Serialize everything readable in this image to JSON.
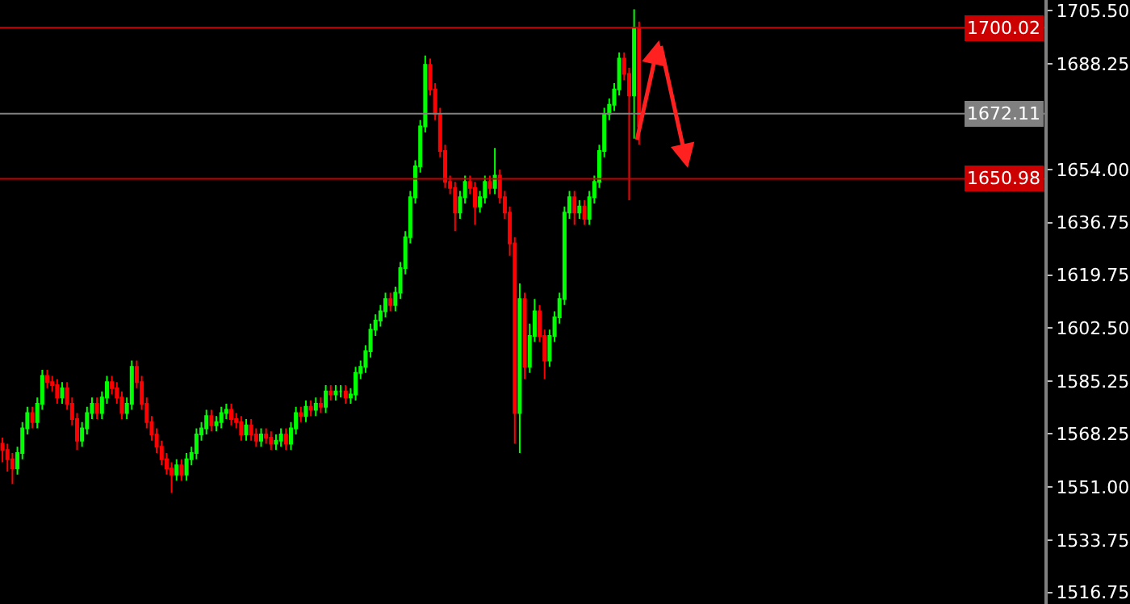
{
  "chart_data": {
    "type": "candlestick",
    "categories": [
      null,
      null,
      null,
      null,
      null,
      null,
      null,
      null,
      null,
      null,
      null,
      null,
      null,
      null,
      null,
      null,
      null,
      null,
      null,
      null,
      null,
      null,
      null,
      null,
      null,
      null,
      null,
      null,
      null,
      null,
      null,
      null,
      null,
      null,
      null,
      null,
      null,
      null,
      null,
      null,
      null,
      null,
      null,
      null,
      null,
      null,
      null,
      null,
      null,
      null,
      null,
      null,
      null,
      null,
      null,
      null,
      null,
      null,
      null,
      null,
      null,
      null,
      null,
      null,
      null,
      null,
      null,
      null,
      null,
      null,
      null,
      null,
      null,
      null,
      null,
      null,
      null,
      null,
      null,
      null,
      null,
      null,
      null,
      null,
      null,
      null,
      null,
      null,
      null,
      null,
      null,
      null,
      null,
      null,
      null,
      null,
      null,
      null,
      null,
      null,
      null,
      null,
      null,
      null,
      null,
      null,
      null,
      null,
      null,
      null,
      null,
      null,
      null,
      null,
      null,
      null,
      null,
      null,
      null,
      null,
      null,
      null,
      null,
      null,
      null,
      null,
      null,
      null,
      null,
      null,
      null,
      null,
      null,
      null,
      null,
      null,
      null,
      null,
      null,
      null,
      null,
      null,
      null,
      null,
      null,
      null,
      null,
      null,
      null,
      null,
      null,
      null,
      null,
      null,
      null,
      null,
      null,
      null,
      null,
      null,
      null,
      null,
      null,
      null,
      null,
      null,
      null,
      null,
      null,
      null,
      null,
      null,
      null,
      null,
      null,
      null,
      null,
      null,
      null,
      null,
      null,
      null,
      null,
      null,
      null,
      null,
      null,
      null,
      null,
      null,
      null,
      null,
      null,
      null,
      null,
      null,
      null,
      null,
      null,
      null,
      null,
      null,
      null,
      null,
      null,
      null,
      null,
      null,
      null,
      null
    ],
    "ohlc": [
      [
        1565,
        1567,
        1559,
        1563
      ],
      [
        1563,
        1565,
        1556,
        1560
      ],
      [
        1560,
        1562,
        1552,
        1557
      ],
      [
        1557,
        1564,
        1555,
        1562
      ],
      [
        1562,
        1572,
        1560,
        1570
      ],
      [
        1570,
        1577,
        1568,
        1575
      ],
      [
        1575,
        1577,
        1570,
        1572
      ],
      [
        1572,
        1580,
        1570,
        1578
      ],
      [
        1578,
        1589,
        1576,
        1587
      ],
      [
        1587,
        1589,
        1583,
        1585
      ],
      [
        1585,
        1587,
        1582,
        1584
      ],
      [
        1584,
        1586,
        1578,
        1580
      ],
      [
        1580,
        1585,
        1578,
        1583
      ],
      [
        1583,
        1585,
        1576,
        1578
      ],
      [
        1578,
        1580,
        1571,
        1573
      ],
      [
        1573,
        1575,
        1563,
        1566
      ],
      [
        1566,
        1572,
        1564,
        1570
      ],
      [
        1570,
        1577,
        1568,
        1575
      ],
      [
        1575,
        1580,
        1573,
        1578
      ],
      [
        1578,
        1580,
        1573,
        1575
      ],
      [
        1575,
        1582,
        1573,
        1580
      ],
      [
        1580,
        1587,
        1578,
        1585
      ],
      [
        1585,
        1587,
        1581,
        1583
      ],
      [
        1583,
        1585,
        1578,
        1580
      ],
      [
        1580,
        1582,
        1573,
        1575
      ],
      [
        1575,
        1580,
        1573,
        1578
      ],
      [
        1578,
        1592,
        1576,
        1590
      ],
      [
        1590,
        1592,
        1583,
        1585
      ],
      [
        1585,
        1587,
        1576,
        1578
      ],
      [
        1578,
        1580,
        1570,
        1572
      ],
      [
        1572,
        1574,
        1566,
        1568
      ],
      [
        1568,
        1570,
        1562,
        1564
      ],
      [
        1564,
        1566,
        1558,
        1560
      ],
      [
        1560,
        1562,
        1555,
        1557
      ],
      [
        1557,
        1559,
        1549,
        1555
      ],
      [
        1555,
        1560,
        1553,
        1558
      ],
      [
        1558,
        1560,
        1553,
        1555
      ],
      [
        1555,
        1562,
        1553,
        1560
      ],
      [
        1560,
        1564,
        1558,
        1562
      ],
      [
        1562,
        1570,
        1560,
        1568
      ],
      [
        1568,
        1572,
        1566,
        1570
      ],
      [
        1570,
        1576,
        1568,
        1574
      ],
      [
        1574,
        1576,
        1569,
        1571
      ],
      [
        1571,
        1574,
        1569,
        1572
      ],
      [
        1572,
        1577,
        1570,
        1575
      ],
      [
        1575,
        1578,
        1573,
        1576
      ],
      [
        1576,
        1578,
        1571,
        1573
      ],
      [
        1573,
        1575,
        1570,
        1572
      ],
      [
        1572,
        1574,
        1566,
        1568
      ],
      [
        1568,
        1573,
        1566,
        1571
      ],
      [
        1571,
        1573,
        1566,
        1568
      ],
      [
        1568,
        1570,
        1564,
        1566
      ],
      [
        1566,
        1570,
        1564,
        1568
      ],
      [
        1568,
        1570,
        1565,
        1567
      ],
      [
        1567,
        1569,
        1563,
        1565
      ],
      [
        1565,
        1568,
        1563,
        1566
      ],
      [
        1566,
        1570,
        1564,
        1568
      ],
      [
        1568,
        1570,
        1563,
        1565
      ],
      [
        1565,
        1572,
        1563,
        1570
      ],
      [
        1570,
        1577,
        1568,
        1575
      ],
      [
        1575,
        1577,
        1572,
        1574
      ],
      [
        1574,
        1579,
        1572,
        1577
      ],
      [
        1577,
        1579,
        1574,
        1576
      ],
      [
        1576,
        1580,
        1574,
        1578
      ],
      [
        1578,
        1580,
        1575,
        1577
      ],
      [
        1577,
        1584,
        1575,
        1582
      ],
      [
        1582,
        1584,
        1579,
        1581
      ],
      [
        1581,
        1584,
        1579,
        1582
      ],
      [
        1582,
        1584,
        1580,
        1582
      ],
      [
        1582,
        1584,
        1578,
        1580
      ],
      [
        1580,
        1583,
        1578,
        1581
      ],
      [
        1581,
        1590,
        1579,
        1588
      ],
      [
        1588,
        1592,
        1586,
        1590
      ],
      [
        1590,
        1597,
        1588,
        1595
      ],
      [
        1595,
        1604,
        1593,
        1602
      ],
      [
        1602,
        1607,
        1600,
        1605
      ],
      [
        1605,
        1610,
        1603,
        1608
      ],
      [
        1608,
        1614,
        1606,
        1612
      ],
      [
        1612,
        1614,
        1608,
        1610
      ],
      [
        1610,
        1616,
        1608,
        1614
      ],
      [
        1614,
        1624,
        1612,
        1622
      ],
      [
        1622,
        1634,
        1620,
        1632
      ],
      [
        1632,
        1647,
        1630,
        1645
      ],
      [
        1645,
        1657,
        1643,
        1655
      ],
      [
        1655,
        1670,
        1653,
        1668
      ],
      [
        1668,
        1691,
        1666,
        1688
      ],
      [
        1688,
        1690,
        1678,
        1680
      ],
      [
        1680,
        1682,
        1670,
        1672
      ],
      [
        1672,
        1674,
        1658,
        1660
      ],
      [
        1660,
        1662,
        1648,
        1650
      ],
      [
        1650,
        1652,
        1646,
        1648
      ],
      [
        1648,
        1650,
        1634,
        1640
      ],
      [
        1640,
        1647,
        1638,
        1645
      ],
      [
        1645,
        1652,
        1643,
        1650
      ],
      [
        1650,
        1652,
        1646,
        1648
      ],
      [
        1648,
        1650,
        1636,
        1642
      ],
      [
        1642,
        1647,
        1640,
        1645
      ],
      [
        1645,
        1652,
        1643,
        1650
      ],
      [
        1650,
        1652,
        1646,
        1648
      ],
      [
        1648,
        1661,
        1646,
        1652
      ],
      [
        1652,
        1654,
        1643,
        1645
      ],
      [
        1645,
        1647,
        1638,
        1640
      ],
      [
        1640,
        1642,
        1626,
        1630
      ],
      [
        1630,
        1632,
        1565,
        1575
      ],
      [
        1575,
        1617,
        1562,
        1612
      ],
      [
        1612,
        1614,
        1586,
        1590
      ],
      [
        1590,
        1604,
        1588,
        1600
      ],
      [
        1600,
        1612,
        1598,
        1608
      ],
      [
        1608,
        1610,
        1598,
        1600
      ],
      [
        1600,
        1602,
        1586,
        1592
      ],
      [
        1592,
        1602,
        1590,
        1600
      ],
      [
        1600,
        1608,
        1598,
        1606
      ],
      [
        1606,
        1614,
        1604,
        1612
      ],
      [
        1612,
        1642,
        1610,
        1640
      ],
      [
        1640,
        1647,
        1638,
        1645
      ],
      [
        1645,
        1647,
        1636,
        1640
      ],
      [
        1640,
        1644,
        1638,
        1642
      ],
      [
        1642,
        1644,
        1636,
        1638
      ],
      [
        1638,
        1647,
        1636,
        1645
      ],
      [
        1645,
        1652,
        1643,
        1650
      ],
      [
        1650,
        1662,
        1648,
        1660
      ],
      [
        1660,
        1674,
        1658,
        1672
      ],
      [
        1672,
        1677,
        1670,
        1675
      ],
      [
        1675,
        1682,
        1673,
        1680
      ],
      [
        1680,
        1692,
        1678,
        1690
      ],
      [
        1690,
        1692,
        1683,
        1685
      ],
      [
        1685,
        1687,
        1644,
        1678
      ],
      [
        1678,
        1706,
        1664,
        1700
      ],
      [
        1700,
        1702,
        1662,
        1668
      ],
      null,
      null,
      null,
      null,
      null,
      null,
      null,
      null,
      null,
      null,
      null,
      null,
      null,
      null,
      null,
      null,
      null,
      null,
      null,
      null,
      null,
      null,
      null,
      null,
      null,
      null,
      null,
      null,
      null,
      null,
      null,
      null,
      null,
      null,
      null,
      null,
      null,
      null,
      null,
      null,
      null,
      null,
      null,
      null,
      null,
      null,
      null,
      null,
      null,
      null,
      null,
      null,
      null,
      null,
      null,
      null,
      null,
      null,
      null,
      null,
      null,
      null,
      null,
      null,
      null,
      null,
      null,
      null,
      null,
      null,
      null,
      null,
      null,
      null,
      null,
      null,
      null,
      null,
      null,
      null,
      null
    ],
    "colors": [
      "#ff0000",
      "#ff0000",
      "#ff0000",
      "#00ff00",
      "#00ff00",
      "#00ff00",
      "#ff0000",
      "#00ff00",
      "#00ff00",
      "#ff0000",
      "#ff0000",
      "#ff0000",
      "#00ff00",
      "#ff0000",
      "#ff0000",
      "#ff0000",
      "#00ff00",
      "#00ff00",
      "#00ff00",
      "#ff0000",
      "#00ff00",
      "#00ff00",
      "#ff0000",
      "#ff0000",
      "#ff0000",
      "#00ff00",
      "#00ff00",
      "#ff0000",
      "#ff0000",
      "#ff0000",
      "#ff0000",
      "#ff0000",
      "#ff0000",
      "#ff0000",
      "#ff0000",
      "#00ff00",
      "#ff0000",
      "#00ff00",
      "#00ff00",
      "#00ff00",
      "#00ff00",
      "#00ff00",
      "#ff0000",
      "#00ff00",
      "#00ff00",
      "#00ff00",
      "#ff0000",
      "#ff0000",
      "#ff0000",
      "#00ff00",
      "#ff0000",
      "#ff0000",
      "#00ff00",
      "#ff0000",
      "#ff0000",
      "#00ff00",
      "#00ff00",
      "#ff0000",
      "#00ff00",
      "#00ff00",
      "#ff0000",
      "#00ff00",
      "#ff0000",
      "#00ff00",
      "#ff0000",
      "#00ff00",
      "#ff0000",
      "#00ff00",
      "#00ff00",
      "#ff0000",
      "#00ff00",
      "#00ff00",
      "#00ff00",
      "#00ff00",
      "#00ff00",
      "#00ff00",
      "#00ff00",
      "#00ff00",
      "#ff0000",
      "#00ff00",
      "#00ff00",
      "#00ff00",
      "#00ff00",
      "#00ff00",
      "#00ff00",
      "#00ff00",
      "#ff0000",
      "#ff0000",
      "#ff0000",
      "#ff0000",
      "#ff0000",
      "#ff0000",
      "#00ff00",
      "#00ff00",
      "#ff0000",
      "#ff0000",
      "#00ff00",
      "#00ff00",
      "#ff0000",
      "#00ff00",
      "#ff0000",
      "#ff0000",
      "#ff0000",
      "#ff0000",
      "#00ff00",
      "#ff0000",
      "#00ff00",
      "#00ff00",
      "#ff0000",
      "#ff0000",
      "#00ff00",
      "#00ff00",
      "#00ff00",
      "#00ff00",
      "#00ff00",
      "#ff0000",
      "#00ff00",
      "#ff0000",
      "#00ff00",
      "#00ff00",
      "#00ff00",
      "#00ff00",
      "#00ff00",
      "#00ff00",
      "#00ff00",
      "#ff0000",
      "#ff0000",
      "#00ff00",
      "#ff0000",
      null,
      null,
      null,
      null,
      null,
      null,
      null,
      null,
      null,
      null,
      null,
      null,
      null,
      null,
      null,
      null,
      null,
      null,
      null,
      null,
      null,
      null,
      null,
      null,
      null,
      null,
      null,
      null,
      null,
      null,
      null,
      null,
      null,
      null,
      null,
      null,
      null,
      null,
      null,
      null,
      null,
      null,
      null,
      null,
      null,
      null,
      null,
      null,
      null,
      null,
      null,
      null,
      null,
      null,
      null,
      null,
      null,
      null,
      null,
      null,
      null,
      null,
      null,
      null,
      null,
      null,
      null,
      null,
      null,
      null,
      null,
      null,
      null,
      null,
      null,
      null,
      null,
      null,
      null,
      null,
      null
    ],
    "ylim": [
      1513,
      1709
    ],
    "yticks": [
      {
        "value": 1705.5,
        "label": "1705.50"
      },
      1688.25,
      {
        "value": 1654,
        "label": "1654.00"
      },
      1636.75,
      1619.75,
      {
        "value": 1602.5,
        "label": "1602.50"
      },
      1585.25,
      1568.25,
      {
        "value": 1551,
        "label": "1551.00"
      },
      1533.75,
      1516.75
    ],
    "ref_lines": [
      {
        "axis": "y",
        "value": 1700.02,
        "label": "1700.02",
        "color": "#cc0000"
      },
      {
        "axis": "y",
        "value": 1672.11,
        "label": "1672.11",
        "color": "#808080"
      },
      {
        "axis": "y",
        "value": 1650.98,
        "label": "1650.98",
        "color": "#cc0000"
      }
    ],
    "grid": false
  }
}
